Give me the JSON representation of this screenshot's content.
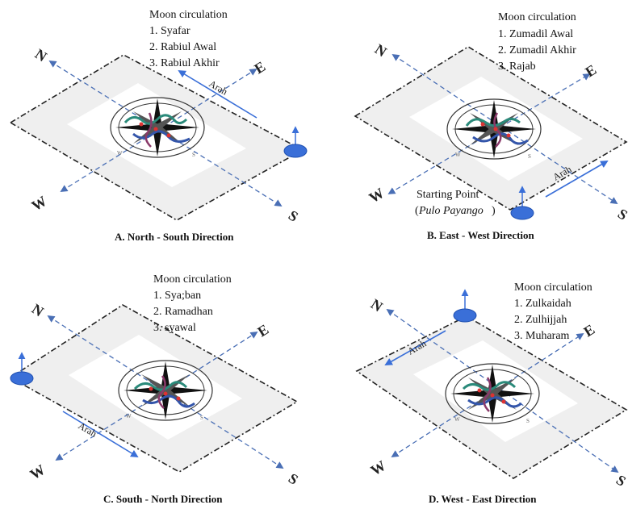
{
  "panels": [
    {
      "id": "A",
      "caption": "A.  North - South Direction",
      "moon_title": "Moon circulation",
      "months": [
        "1.   Syafar",
        "2.   Rabiul Awal",
        "3.   Rabiul Akhir"
      ],
      "arah": "Arah",
      "axis_labels": {
        "n": "N",
        "e": "E",
        "w": "W",
        "s": "S"
      }
    },
    {
      "id": "B",
      "caption": "B.  East - West Direction",
      "moon_title": "Moon circulation",
      "months": [
        "1.   Zumadil Awal",
        "2.   Zumadil Akhir",
        "3.   Rajab"
      ],
      "arah": "Arah",
      "start_point": "Starting Point",
      "start_place": "Pulo Payango",
      "axis_labels": {
        "n": "N",
        "e": "E",
        "w": "W",
        "s": "S"
      }
    },
    {
      "id": "C",
      "caption": "C.  South - North Direction",
      "moon_title": "Moon circulation",
      "months": [
        "1.   Sya;ban",
        "2.   Ramadhan",
        "3.   syawal"
      ],
      "arah": "Arah",
      "axis_labels": {
        "n": "N",
        "e": "E",
        "w": "W",
        "s": "S"
      }
    },
    {
      "id": "D",
      "caption": "D.  West - East Direction",
      "moon_title": "Moon circulation",
      "months": [
        "1.   Zulkaidah",
        "2.   Zulhijjah",
        "3.   Muharam"
      ],
      "arah": "Arah",
      "axis_labels": {
        "n": "N",
        "e": "E",
        "w": "W",
        "s": "S"
      }
    }
  ],
  "colors": {
    "dash_line": "#4a6fb5",
    "marker": "#3a6fd8",
    "plane_border": "#222222",
    "plane_fill": "#efefef",
    "inner_fill": "#ffffff"
  }
}
